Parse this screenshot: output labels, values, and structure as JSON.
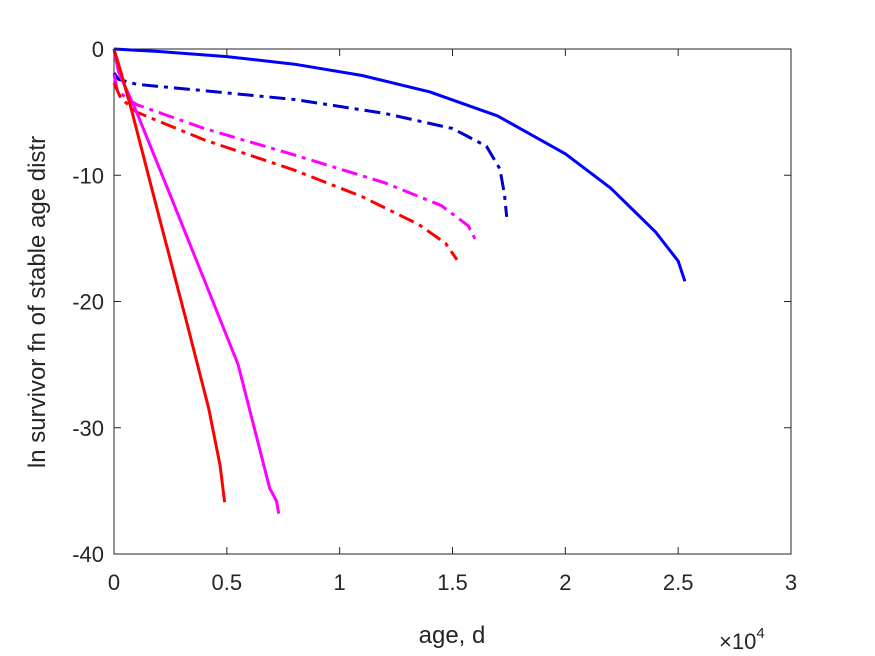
{
  "chart_data": {
    "type": "line",
    "title": "",
    "xlabel": "age, d",
    "ylabel": "ln survivor fn of stable age distr",
    "xlim": [
      0,
      30000
    ],
    "ylim": [
      -40,
      0
    ],
    "x_ticks": [
      0,
      5000,
      10000,
      15000,
      20000,
      25000,
      30000
    ],
    "x_tick_labels": [
      "0",
      "0.5",
      "1",
      "1.5",
      "2",
      "2.5",
      "3"
    ],
    "y_ticks": [
      -40,
      -30,
      -20,
      -10,
      0
    ],
    "y_tick_labels": [
      "-40",
      "-30",
      "-20",
      "-10",
      "0"
    ],
    "x_multiplier": {
      "base": "×10",
      "exponent": "4"
    },
    "grid": false,
    "legend": "none",
    "series": [
      {
        "color": "#0000ff",
        "style": "solid",
        "points": [
          [
            0,
            0
          ],
          [
            2000,
            -0.2
          ],
          [
            5000,
            -0.6
          ],
          [
            8000,
            -1.2
          ],
          [
            11000,
            -2.1
          ],
          [
            14000,
            -3.4
          ],
          [
            17000,
            -5.3
          ],
          [
            20000,
            -8.3
          ],
          [
            22000,
            -11.0
          ],
          [
            24000,
            -14.5
          ],
          [
            25000,
            -16.8
          ],
          [
            25300,
            -18.4
          ]
        ]
      },
      {
        "color": "#0000cd",
        "style": "dashdot",
        "points": [
          [
            0,
            -1.9
          ],
          [
            200,
            -2.4
          ],
          [
            1000,
            -2.8
          ],
          [
            4000,
            -3.3
          ],
          [
            8000,
            -4.0
          ],
          [
            12000,
            -5.1
          ],
          [
            15000,
            -6.3
          ],
          [
            16500,
            -7.7
          ],
          [
            17100,
            -9.5
          ],
          [
            17300,
            -11.5
          ],
          [
            17400,
            -13.3
          ]
        ]
      },
      {
        "color": "#ff00ff",
        "style": "dashdot",
        "points": [
          [
            0,
            -2.0
          ],
          [
            150,
            -3.3
          ],
          [
            500,
            -3.8
          ],
          [
            1000,
            -4.4
          ],
          [
            4000,
            -6.3
          ],
          [
            8000,
            -8.4
          ],
          [
            12000,
            -10.6
          ],
          [
            14500,
            -12.4
          ],
          [
            15700,
            -14.0
          ],
          [
            16100,
            -15.4
          ]
        ]
      },
      {
        "color": "#ff0000",
        "style": "dashdot",
        "points": [
          [
            0,
            -2.7
          ],
          [
            300,
            -3.9
          ],
          [
            1000,
            -5.0
          ],
          [
            4000,
            -7.2
          ],
          [
            8000,
            -9.6
          ],
          [
            11000,
            -11.7
          ],
          [
            13500,
            -13.9
          ],
          [
            14700,
            -15.4
          ],
          [
            15200,
            -16.7
          ]
        ]
      },
      {
        "color": "#ff00ff",
        "style": "solid",
        "points": [
          [
            0,
            0
          ],
          [
            200,
            -1.8
          ],
          [
            1000,
            -5.0
          ],
          [
            2500,
            -11.6
          ],
          [
            4000,
            -18.3
          ],
          [
            5500,
            -25.0
          ],
          [
            6900,
            -34.8
          ],
          [
            7200,
            -35.8
          ],
          [
            7300,
            -36.8
          ]
        ]
      },
      {
        "color": "#ff0000",
        "style": "solid",
        "points": [
          [
            0,
            0
          ],
          [
            300,
            -1.8
          ],
          [
            800,
            -5.0
          ],
          [
            2000,
            -13.3
          ],
          [
            3200,
            -21.5
          ],
          [
            4200,
            -28.5
          ],
          [
            4700,
            -33.0
          ],
          [
            4900,
            -35.9
          ]
        ]
      }
    ]
  }
}
